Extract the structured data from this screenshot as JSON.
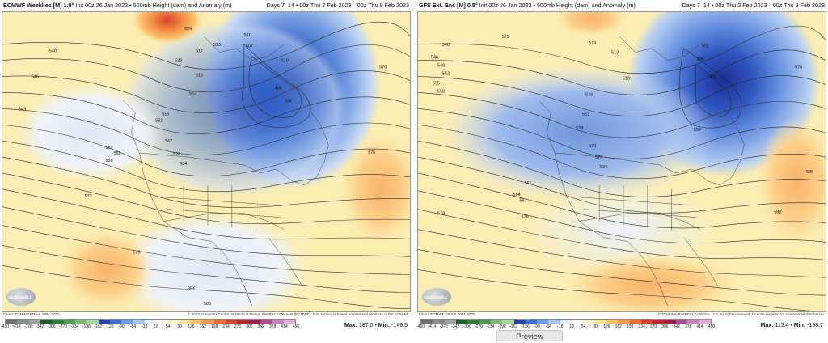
{
  "panels": [
    {
      "title_bold": "ECMWF Weeklies [M] 1.0°",
      "title_rest": " Init 00z 26 Jan 2023 • 500mb Height (dam) and Anomaly (m)",
      "valid": "Days 7–14 • 00z Thu 2 Feb 2023—00z Thu 9 Feb 2023",
      "source": "Climo: ECMWF ERA-5 1991-2020",
      "copyright": "© 2023 European Centre for Medium-Range Weather Forecasts (ECMWF). This service is based on data and products of the ECMWF.",
      "max_label": "Max:",
      "max": "187.0",
      "min_label": "Min:",
      "min": "-149.5",
      "logo": "WeatherBELL",
      "contour_labels": [
        "529",
        "523",
        "517",
        "513",
        "510",
        "507",
        "516",
        "522",
        "504",
        "498",
        "546",
        "543",
        "540",
        "552",
        "555",
        "558",
        "567",
        "561",
        "573",
        "528",
        "534",
        "579",
        "582",
        "585",
        "576",
        "516",
        "510",
        "570"
      ]
    },
    {
      "title_bold": "GFS Ext. Ens [M] 0.5°",
      "title_rest": " Init 00z 26 Jan 2023 • 500mb Height (dam) and Anomaly (m)",
      "valid": "Days 7–14 • 00z Thu 2 Feb 2023—00z Thu 9 Feb 2023",
      "source": "Climo: ECMWF ERA-5 1991-2020",
      "copyright": "© 2023 WeatherBELL Analytics, LLC. All rights reserved. License required for commercial distribution.",
      "max_label": "Max:",
      "max": "113.4",
      "min_label": "Min:",
      "min": "-198.7",
      "logo": "WeatherBELL",
      "contour_labels": [
        "525",
        "519",
        "513",
        "501",
        "492",
        "498",
        "504",
        "510",
        "516",
        "522",
        "540",
        "546",
        "549",
        "552",
        "555",
        "558",
        "561",
        "564",
        "567",
        "570",
        "573",
        "576",
        "579",
        "582",
        "585",
        "528",
        "534",
        "570"
      ]
    }
  ],
  "colorbar": {
    "ticks": [
      "-450",
      "-414",
      "-378",
      "-342",
      "-306",
      "-270",
      "-234",
      "-198",
      "-162",
      "-126",
      "-90",
      "-54",
      "-18",
      "18",
      "54",
      "90",
      "126",
      "162",
      "198",
      "234",
      "270",
      "306",
      "342",
      "378",
      "414",
      "450"
    ],
    "colors": [
      "#6e6e6e",
      "#8a8a8a",
      "#a3a3a3",
      "#1f5c2e",
      "#2f7a3f",
      "#4d9a55",
      "#7dbb73",
      "#aad59b",
      "#2244aa",
      "#3c6fd0",
      "#6f9ae6",
      "#a9c4f0",
      "#e6eef9",
      "#ffffff",
      "#fbf3c4",
      "#fde19a",
      "#fcc26d",
      "#f89b4e",
      "#ee6b3b",
      "#d9412e",
      "#b8282a",
      "#9c1d47",
      "#b04c92",
      "#c884bd",
      "#dcb0d6"
    ]
  },
  "preview_label": "Preview"
}
